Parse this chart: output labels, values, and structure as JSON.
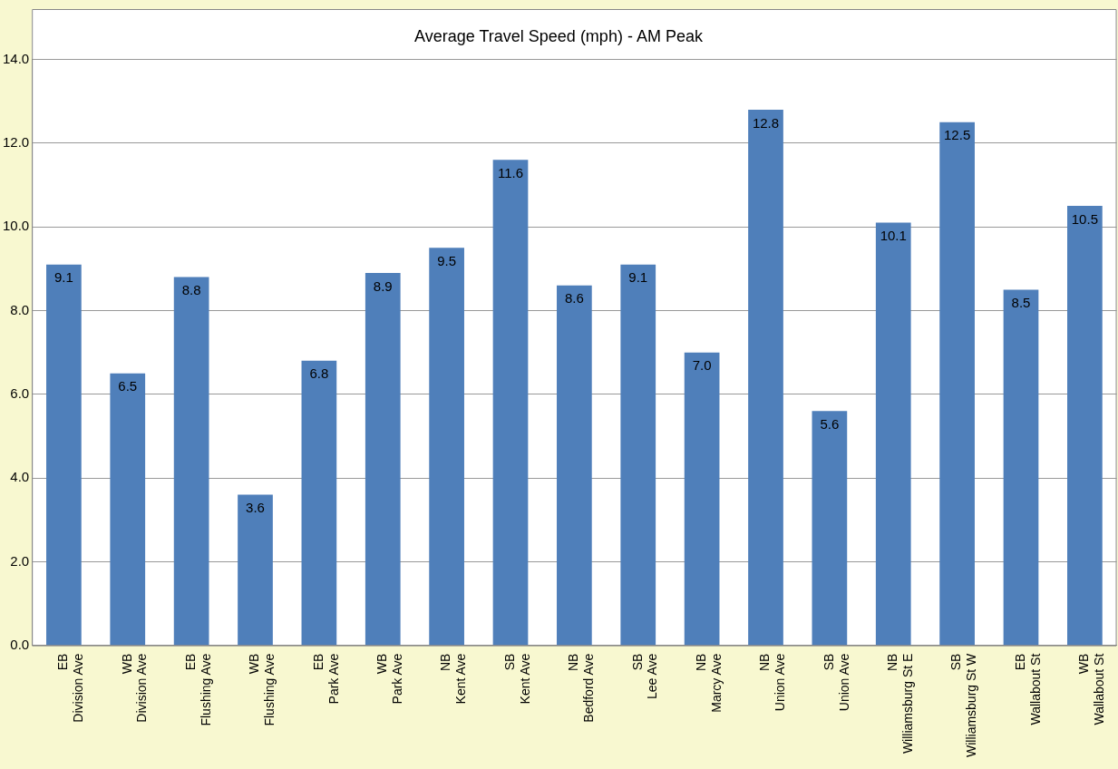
{
  "chart_data": {
    "type": "bar",
    "title": "Average Travel Speed (mph) - AM Peak",
    "categories": [
      "EB\nDivision Ave",
      "WB\nDivision Ave",
      "EB\nFlushing Ave",
      "WB\nFlushing Ave",
      "EB\nPark Ave",
      "WB\nPark Ave",
      "NB\nKent Ave",
      "SB\nKent Ave",
      "NB\nBedford Ave",
      "SB\nLee Ave",
      "NB\nMarcy Ave",
      "NB\nUnion Ave",
      "SB\nUnion Ave",
      "NB\nWilliamsburg St E",
      "SB\nWilliamsburg St W",
      "EB\nWallabout St",
      "WB\nWallabout St"
    ],
    "values": [
      9.1,
      6.5,
      8.8,
      3.6,
      6.8,
      8.9,
      9.5,
      11.6,
      8.6,
      9.1,
      7.0,
      12.8,
      5.6,
      10.1,
      12.5,
      8.5,
      10.5
    ],
    "value_labels": [
      "9.1",
      "6.5",
      "8.8",
      "3.6",
      "6.8",
      "8.9",
      "9.5",
      "11.6",
      "8.6",
      "9.1",
      "7.0",
      "12.8",
      "5.6",
      "10.1",
      "12.5",
      "8.5",
      "10.5"
    ],
    "color": "#4f7fba",
    "ylim": [
      0,
      14
    ],
    "yticks": [
      {
        "value": 0,
        "label": "0.0"
      },
      {
        "value": 2,
        "label": "2.0"
      },
      {
        "value": 4,
        "label": "4.0"
      },
      {
        "value": 6,
        "label": "6.0"
      },
      {
        "value": 8,
        "label": "8.0"
      },
      {
        "value": 10,
        "label": "10.0"
      },
      {
        "value": 12,
        "label": "12.0"
      },
      {
        "value": 14,
        "label": "14.0"
      }
    ],
    "grid": "y"
  }
}
